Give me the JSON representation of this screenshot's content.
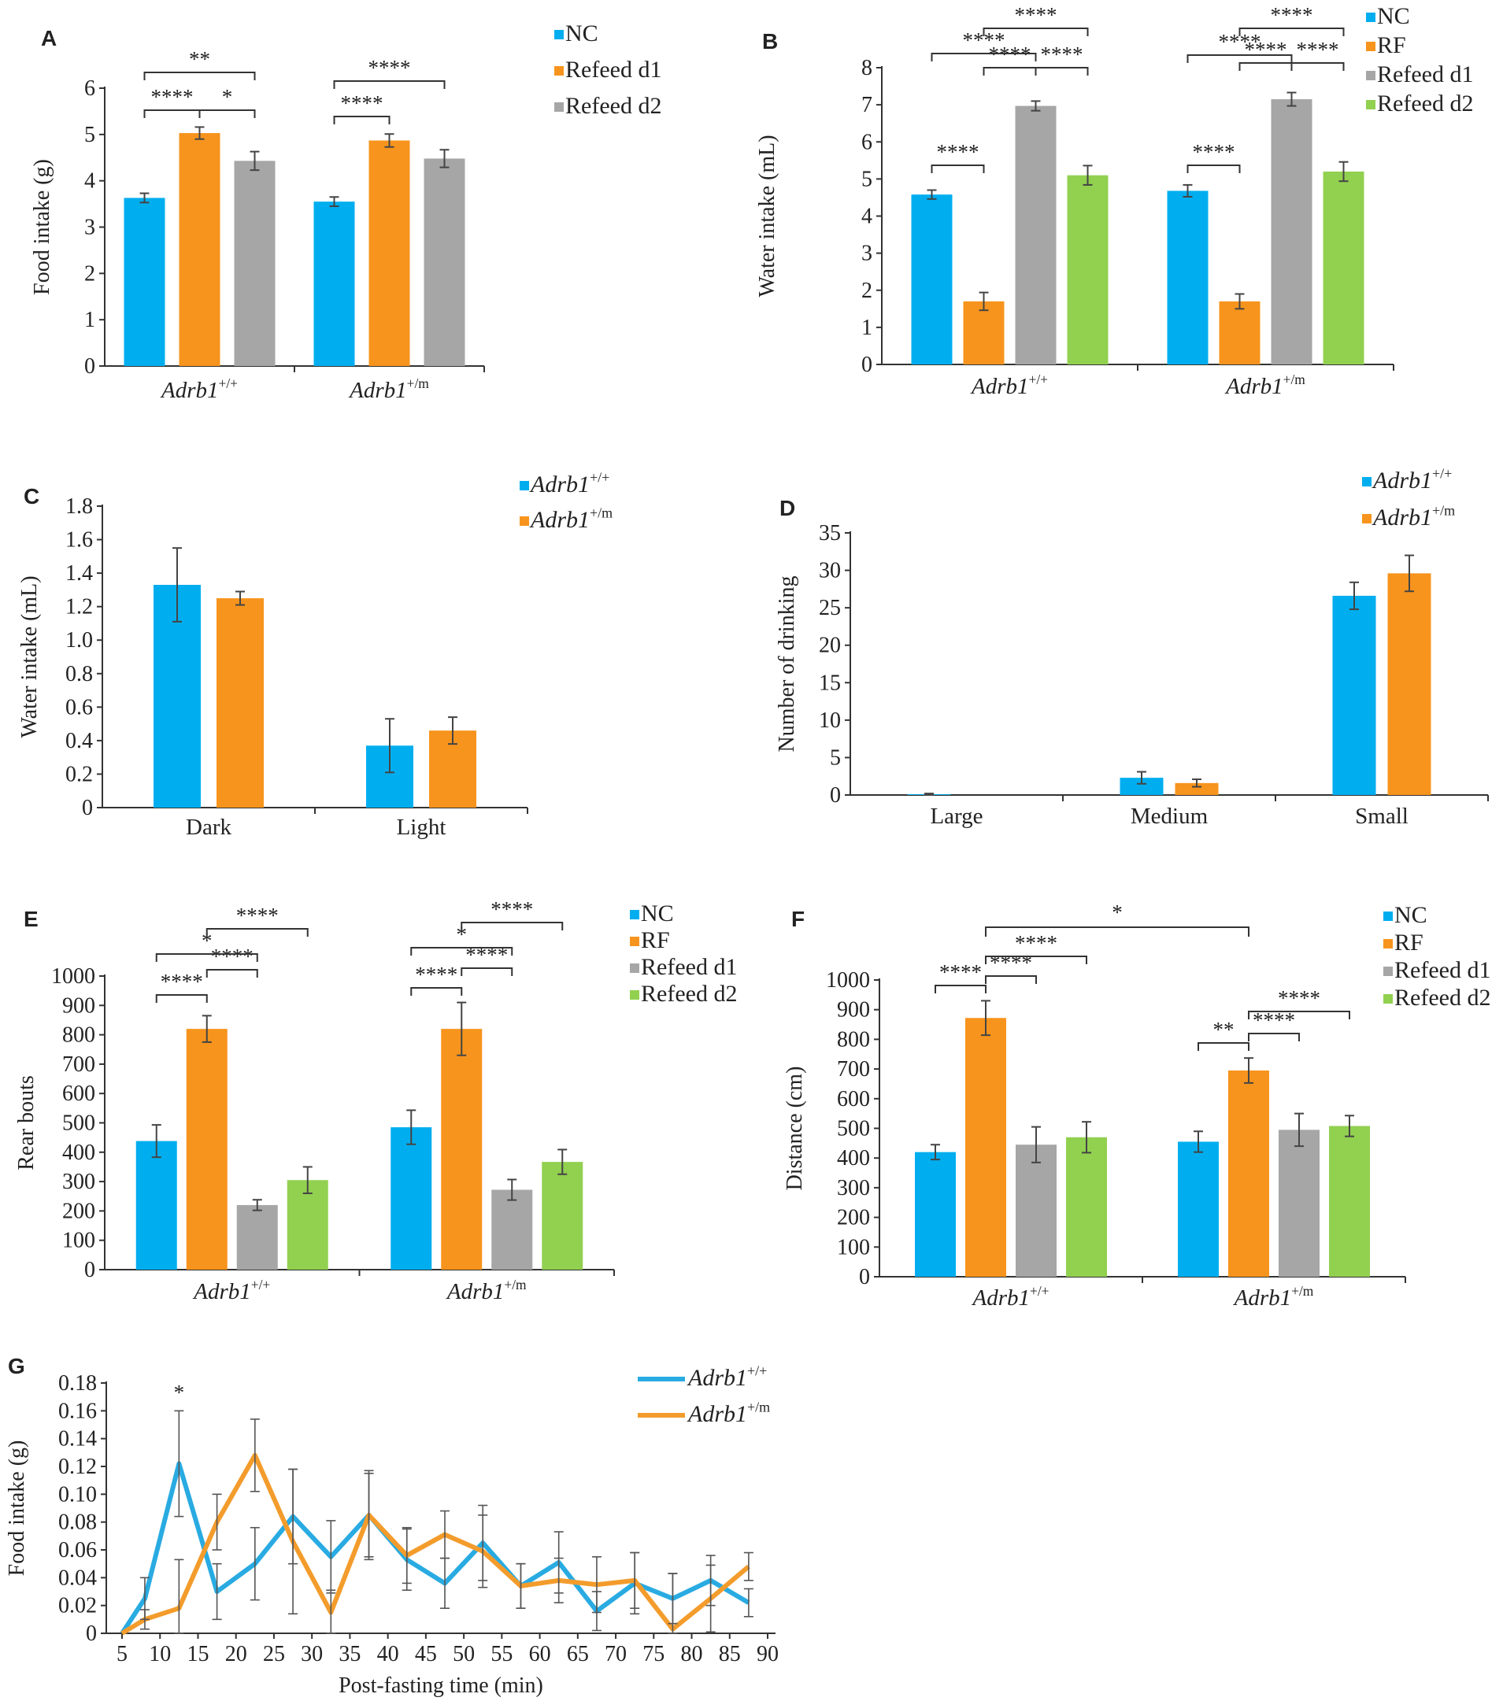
{
  "chart_data": [
    {
      "panel": "A",
      "type": "bar",
      "ylabel": "Food intake (g)",
      "ylim": [
        0,
        6
      ],
      "yticks": [
        0,
        1,
        2,
        3,
        4,
        5,
        6
      ],
      "categories": [
        "Adrb1+/+",
        "Adrb1+/m"
      ],
      "genotype_base": "Adrb1",
      "genotype_sup": [
        "+/+",
        "+/m"
      ],
      "series": [
        {
          "name": "NC",
          "color": "#00aeef",
          "values": [
            3.63,
            3.55
          ],
          "err": [
            0.1,
            0.1
          ]
        },
        {
          "name": "Refeed d1",
          "color": "#f7941d",
          "values": [
            5.03,
            4.87
          ],
          "err": [
            0.13,
            0.14
          ]
        },
        {
          "name": "Refeed d2",
          "color": "#a6a6a6",
          "values": [
            4.43,
            4.48
          ],
          "err": [
            0.2,
            0.19
          ]
        }
      ],
      "sig": [
        {
          "group": 0,
          "from": 0,
          "to": 1,
          "label": "****",
          "level": 0
        },
        {
          "group": 0,
          "from": 1,
          "to": 2,
          "label": "*",
          "level": 0
        },
        {
          "group": 0,
          "from": 0,
          "to": 2,
          "label": "**",
          "level": 1
        },
        {
          "group": 1,
          "from": 0,
          "to": 1,
          "label": "****",
          "level": 0
        },
        {
          "group": 1,
          "from": 0,
          "to": 2,
          "label": "****",
          "level": 1
        }
      ]
    },
    {
      "panel": "B",
      "type": "bar",
      "ylabel": "Water intake (mL)",
      "ylim": [
        0,
        8
      ],
      "yticks": [
        0,
        1,
        2,
        3,
        4,
        5,
        6,
        7,
        8
      ],
      "categories": [
        "Adrb1+/+",
        "Adrb1+/m"
      ],
      "genotype_base": "Adrb1",
      "genotype_sup": [
        "+/+",
        "+/m"
      ],
      "series": [
        {
          "name": "NC",
          "color": "#00aeef",
          "values": [
            4.58,
            4.68
          ],
          "err": [
            0.12,
            0.16
          ]
        },
        {
          "name": "RF",
          "color": "#f7941d",
          "values": [
            1.7,
            1.7
          ],
          "err": [
            0.24,
            0.2
          ]
        },
        {
          "name": "Refeed d1",
          "color": "#a6a6a6",
          "values": [
            6.97,
            7.15
          ],
          "err": [
            0.13,
            0.18
          ]
        },
        {
          "name": "Refeed d2",
          "color": "#92d050",
          "values": [
            5.1,
            5.2
          ],
          "err": [
            0.26,
            0.26
          ]
        }
      ],
      "sig": [
        {
          "group": 0,
          "from": 0,
          "to": 1,
          "label": "****",
          "level": 0
        },
        {
          "group": 0,
          "from": 1,
          "to": 2,
          "label": "****",
          "level": 0
        },
        {
          "group": 0,
          "from": 2,
          "to": 3,
          "label": "****",
          "level": 0
        },
        {
          "group": 0,
          "from": 0,
          "to": 2,
          "label": "****",
          "level": 1
        },
        {
          "group": 0,
          "from": 1,
          "to": 3,
          "label": "****",
          "level": 2
        },
        {
          "group": 1,
          "from": 0,
          "to": 1,
          "label": "****",
          "level": 0
        },
        {
          "group": 1,
          "from": 1,
          "to": 2,
          "label": "****",
          "level": 0
        },
        {
          "group": 1,
          "from": 2,
          "to": 3,
          "label": "****",
          "level": 0
        },
        {
          "group": 1,
          "from": 0,
          "to": 2,
          "label": "****",
          "level": 1
        },
        {
          "group": 1,
          "from": 1,
          "to": 3,
          "label": "****",
          "level": 2
        }
      ]
    },
    {
      "panel": "C",
      "type": "bar",
      "ylabel": "Water intake (mL)",
      "ylim": [
        0,
        1.8
      ],
      "yticks": [
        0,
        0.2,
        0.4,
        0.6,
        0.8,
        1.0,
        1.2,
        1.4,
        1.6,
        1.8
      ],
      "ytick_labels": [
        "0",
        "0.2",
        "0.4",
        "0.6",
        "0.8",
        "1.0",
        "1.2",
        "1.4",
        "1.6",
        "1.8"
      ],
      "categories": [
        "Dark",
        "Light"
      ],
      "series": [
        {
          "name": "Adrb1+/+",
          "base": "Adrb1",
          "sup": "+/+",
          "color": "#00aeef",
          "values": [
            1.33,
            0.37
          ],
          "err": [
            0.22,
            0.16
          ]
        },
        {
          "name": "Adrb1+/m",
          "base": "Adrb1",
          "sup": "+/m",
          "color": "#f7941d",
          "values": [
            1.25,
            0.46
          ],
          "err": [
            0.04,
            0.08
          ]
        }
      ],
      "sig": []
    },
    {
      "panel": "D",
      "type": "bar",
      "ylabel": "Number of drinking",
      "ylim": [
        0,
        35
      ],
      "yticks": [
        0,
        5,
        10,
        15,
        20,
        25,
        30,
        35
      ],
      "categories": [
        "Large",
        "Medium",
        "Small"
      ],
      "series": [
        {
          "name": "Adrb1+/+",
          "base": "Adrb1",
          "sup": "+/+",
          "color": "#00aeef",
          "values": [
            0.1,
            2.3,
            26.6
          ],
          "err": [
            0.1,
            0.8,
            1.8
          ]
        },
        {
          "name": "Adrb1+/m",
          "base": "Adrb1",
          "sup": "+/m",
          "color": "#f7941d",
          "values": [
            0,
            1.6,
            29.6
          ],
          "err": [
            0,
            0.5,
            2.4
          ]
        }
      ],
      "sig": []
    },
    {
      "panel": "E",
      "type": "bar",
      "ylabel": "Rear bouts",
      "ylim": [
        0,
        1000
      ],
      "yticks": [
        0,
        100,
        200,
        300,
        400,
        500,
        600,
        700,
        800,
        900,
        1000
      ],
      "categories": [
        "Adrb1+/+",
        "Adrb1+/m"
      ],
      "genotype_base": "Adrb1",
      "genotype_sup": [
        "+/+",
        "+/m"
      ],
      "series": [
        {
          "name": "NC",
          "color": "#00aeef",
          "values": [
            438,
            485
          ],
          "err": [
            55,
            58
          ]
        },
        {
          "name": "RF",
          "color": "#f7941d",
          "values": [
            820,
            820
          ],
          "err": [
            45,
            90
          ]
        },
        {
          "name": "Refeed d1",
          "color": "#a6a6a6",
          "values": [
            220,
            272
          ],
          "err": [
            18,
            35
          ]
        },
        {
          "name": "Refeed d2",
          "color": "#92d050",
          "values": [
            305,
            367
          ],
          "err": [
            45,
            42
          ]
        }
      ],
      "sig": [
        {
          "group": 0,
          "from": 0,
          "to": 1,
          "label": "****",
          "level": 0
        },
        {
          "group": 0,
          "from": 1,
          "to": 2,
          "label": "****",
          "level": 0
        },
        {
          "group": 0,
          "from": 0,
          "to": 2,
          "label": "*",
          "level": 1
        },
        {
          "group": 0,
          "from": 1,
          "to": 3,
          "label": "****",
          "level": 2
        },
        {
          "group": 1,
          "from": 0,
          "to": 1,
          "label": "****",
          "level": 0
        },
        {
          "group": 1,
          "from": 1,
          "to": 2,
          "label": "****",
          "level": 0
        },
        {
          "group": 1,
          "from": 0,
          "to": 2,
          "label": "*",
          "level": 1
        },
        {
          "group": 1,
          "from": 1,
          "to": 3,
          "label": "****",
          "level": 2
        }
      ]
    },
    {
      "panel": "F",
      "type": "bar",
      "ylabel": "Distance (cm)",
      "ylim": [
        0,
        1000
      ],
      "yticks": [
        0,
        100,
        200,
        300,
        400,
        500,
        600,
        700,
        800,
        900,
        1000
      ],
      "categories": [
        "Adrb1+/+",
        "Adrb1+/m"
      ],
      "genotype_base": "Adrb1",
      "genotype_sup": [
        "+/+",
        "+/m"
      ],
      "series": [
        {
          "name": "NC",
          "color": "#00aeef",
          "values": [
            420,
            455
          ],
          "err": [
            25,
            35
          ]
        },
        {
          "name": "RF",
          "color": "#f7941d",
          "values": [
            872,
            695
          ],
          "err": [
            58,
            42
          ]
        },
        {
          "name": "Refeed d1",
          "color": "#a6a6a6",
          "values": [
            445,
            495
          ],
          "err": [
            60,
            55
          ]
        },
        {
          "name": "Refeed d2",
          "color": "#92d050",
          "values": [
            470,
            508
          ],
          "err": [
            52,
            35
          ]
        }
      ],
      "sig": [
        {
          "group": 0,
          "from": 0,
          "to": 1,
          "label": "****",
          "level": 0
        },
        {
          "group": 0,
          "from": 1,
          "to": 2,
          "label": "****",
          "level": 0
        },
        {
          "group": 0,
          "from": 1,
          "to": 3,
          "label": "****",
          "level": 1
        },
        {
          "group": 1,
          "from": 0,
          "to": 1,
          "label": "**",
          "level": 0
        },
        {
          "group": 1,
          "from": 1,
          "to": 2,
          "label": "****",
          "level": 0
        },
        {
          "group": 1,
          "from": 1,
          "to": 3,
          "label": "****",
          "level": 1
        }
      ],
      "cross_sig": {
        "g1": 0,
        "s1": 1,
        "g2": 1,
        "s2": 1,
        "label": "*"
      }
    },
    {
      "panel": "G",
      "type": "line",
      "ylabel": "Food intake (g)",
      "xlabel": "Post-fasting time (min)",
      "xlim": [
        5,
        90
      ],
      "ylim": [
        0,
        0.18
      ],
      "xticks": [
        5,
        10,
        15,
        20,
        25,
        30,
        35,
        40,
        45,
        50,
        55,
        60,
        65,
        70,
        75,
        80,
        85,
        90
      ],
      "yticks": [
        0,
        0.02,
        0.04,
        0.06,
        0.08,
        0.1,
        0.12,
        0.14,
        0.16,
        0.18
      ],
      "ytick_labels": [
        "0",
        "0.02",
        "0.04",
        "0.06",
        "0.08",
        "0.10",
        "0.12",
        "0.14",
        "0.16",
        "0.18"
      ],
      "x": [
        5,
        8,
        12.5,
        17.5,
        22.5,
        27.5,
        32.5,
        37.5,
        42.5,
        47.5,
        52.5,
        57.5,
        62.5,
        67.5,
        72.5,
        77.5,
        82.5,
        87.5
      ],
      "series": [
        {
          "name": "Adrb1+/+",
          "base": "Adrb1",
          "sup": "+/+",
          "color": "#29abe2",
          "values": [
            0,
            0.025,
            0.122,
            0.03,
            0.05,
            0.084,
            0.055,
            0.085,
            0.053,
            0.036,
            0.065,
            0.034,
            0.051,
            0.016,
            0.036,
            0.025,
            0.038,
            0.022
          ],
          "err": [
            0,
            0.015,
            0.038,
            0.02,
            0.026,
            0.034,
            0.026,
            0.03,
            0.022,
            0.018,
            0.027,
            0.016,
            0.022,
            0.014,
            0.022,
            0.018,
            0.018,
            0.01
          ]
        },
        {
          "name": "Adrb1+/m",
          "base": "Adrb1",
          "sup": "+/m",
          "color": "#f39c2c",
          "values": [
            0,
            0.01,
            0.018,
            0.08,
            0.128,
            0.066,
            0.015,
            0.085,
            0.056,
            0.071,
            0.059,
            0.034,
            0.038,
            0.035,
            0.038,
            0.003,
            0.025,
            0.048
          ],
          "err": [
            0,
            0.007,
            0.035,
            0.02,
            0.026,
            0.052,
            0.016,
            0.032,
            0.02,
            0.017,
            0.026,
            0.016,
            0.016,
            0.02,
            0.02,
            0.04,
            0.024,
            0.01
          ]
        }
      ],
      "sig": [
        {
          "x": 12.5,
          "label": "*"
        }
      ]
    }
  ]
}
